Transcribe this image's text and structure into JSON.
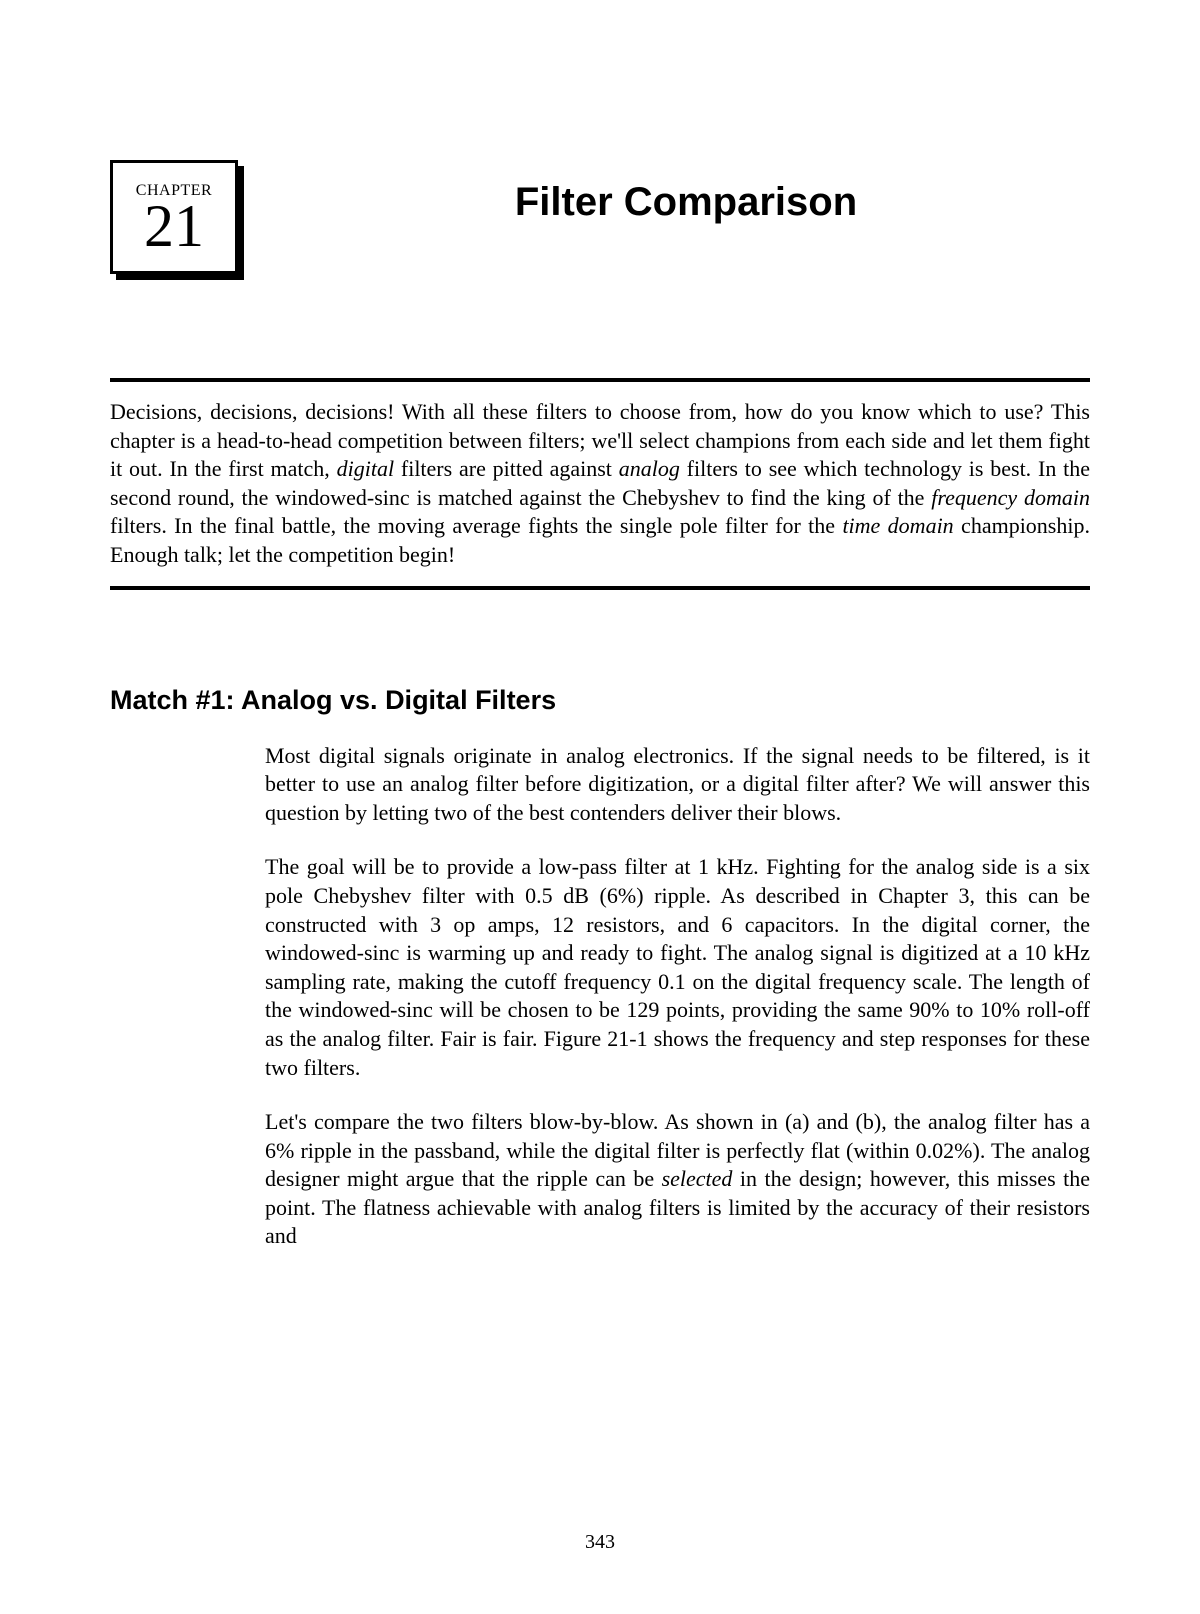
{
  "chapter": {
    "label": "CHAPTER",
    "number": "21",
    "title": "Filter Comparison"
  },
  "intro": {
    "seg1": "Decisions, decisions, decisions!  With all these filters to choose from, how do you know which to use?  This chapter is a head-to-head competition between filters; we'll select champions from each side and let them fight it out.  In the first match, ",
    "em1": "digital",
    "seg2": " filters are pitted against ",
    "em2": "analog",
    "seg3": " filters to see which technology is best.   In the second round, the windowed-sinc is matched against the Chebyshev to find the king of the ",
    "em3": "frequency domain",
    "seg4": " filters.  In the final battle, the moving average fights the single pole filter for the ",
    "em4": "time domain",
    "seg5": " championship.  Enough talk; let the competition begin!"
  },
  "section": {
    "heading": "Match #1:  Analog vs. Digital Filters",
    "p1": "Most digital signals originate in analog electronics.  If the signal needs to be filtered, is it better to use an analog filter before digitization, or a digital filter after?  We will answer this question by letting two of the best contenders deliver their blows.",
    "p2": "The goal will be to provide a low-pass filter at 1 kHz.  Fighting for the analog side is a six pole Chebyshev filter with 0.5 dB (6%) ripple.  As described in Chapter 3, this can be constructed with 3 op amps, 12 resistors, and 6 capacitors.  In the digital corner, the windowed-sinc is warming up and ready to fight.  The analog signal is digitized at a 10 kHz sampling rate, making the cutoff frequency 0.1 on the digital frequency scale.  The length of the windowed-sinc will be chosen to be 129 points, providing the same 90% to 10% roll-off as the analog filter.  Fair is fair.  Figure 21-1 shows the frequency and step responses for these two filters.",
    "p3_seg1": "Let's compare the two filters blow-by-blow.  As shown in (a) and (b), the analog filter has a 6% ripple in the passband, while the digital filter is perfectly flat (within 0.02%).  The analog designer might argue that the ripple can be ",
    "p3_em1": "selected",
    "p3_seg2": " in the design; however, this misses the point.  The flatness achievable with analog filters is limited by the accuracy of their resistors and"
  },
  "pageNumber": "343",
  "colors": {
    "text": "#000000",
    "bg": "#ffffff"
  },
  "typography": {
    "serif_family": "Times New Roman",
    "sans_family": "Arial",
    "chapter_title_size_pt": 30,
    "chapter_number_size_pt": 45,
    "chapter_label_size_pt": 12,
    "section_heading_size_pt": 20,
    "body_size_pt": 16
  }
}
